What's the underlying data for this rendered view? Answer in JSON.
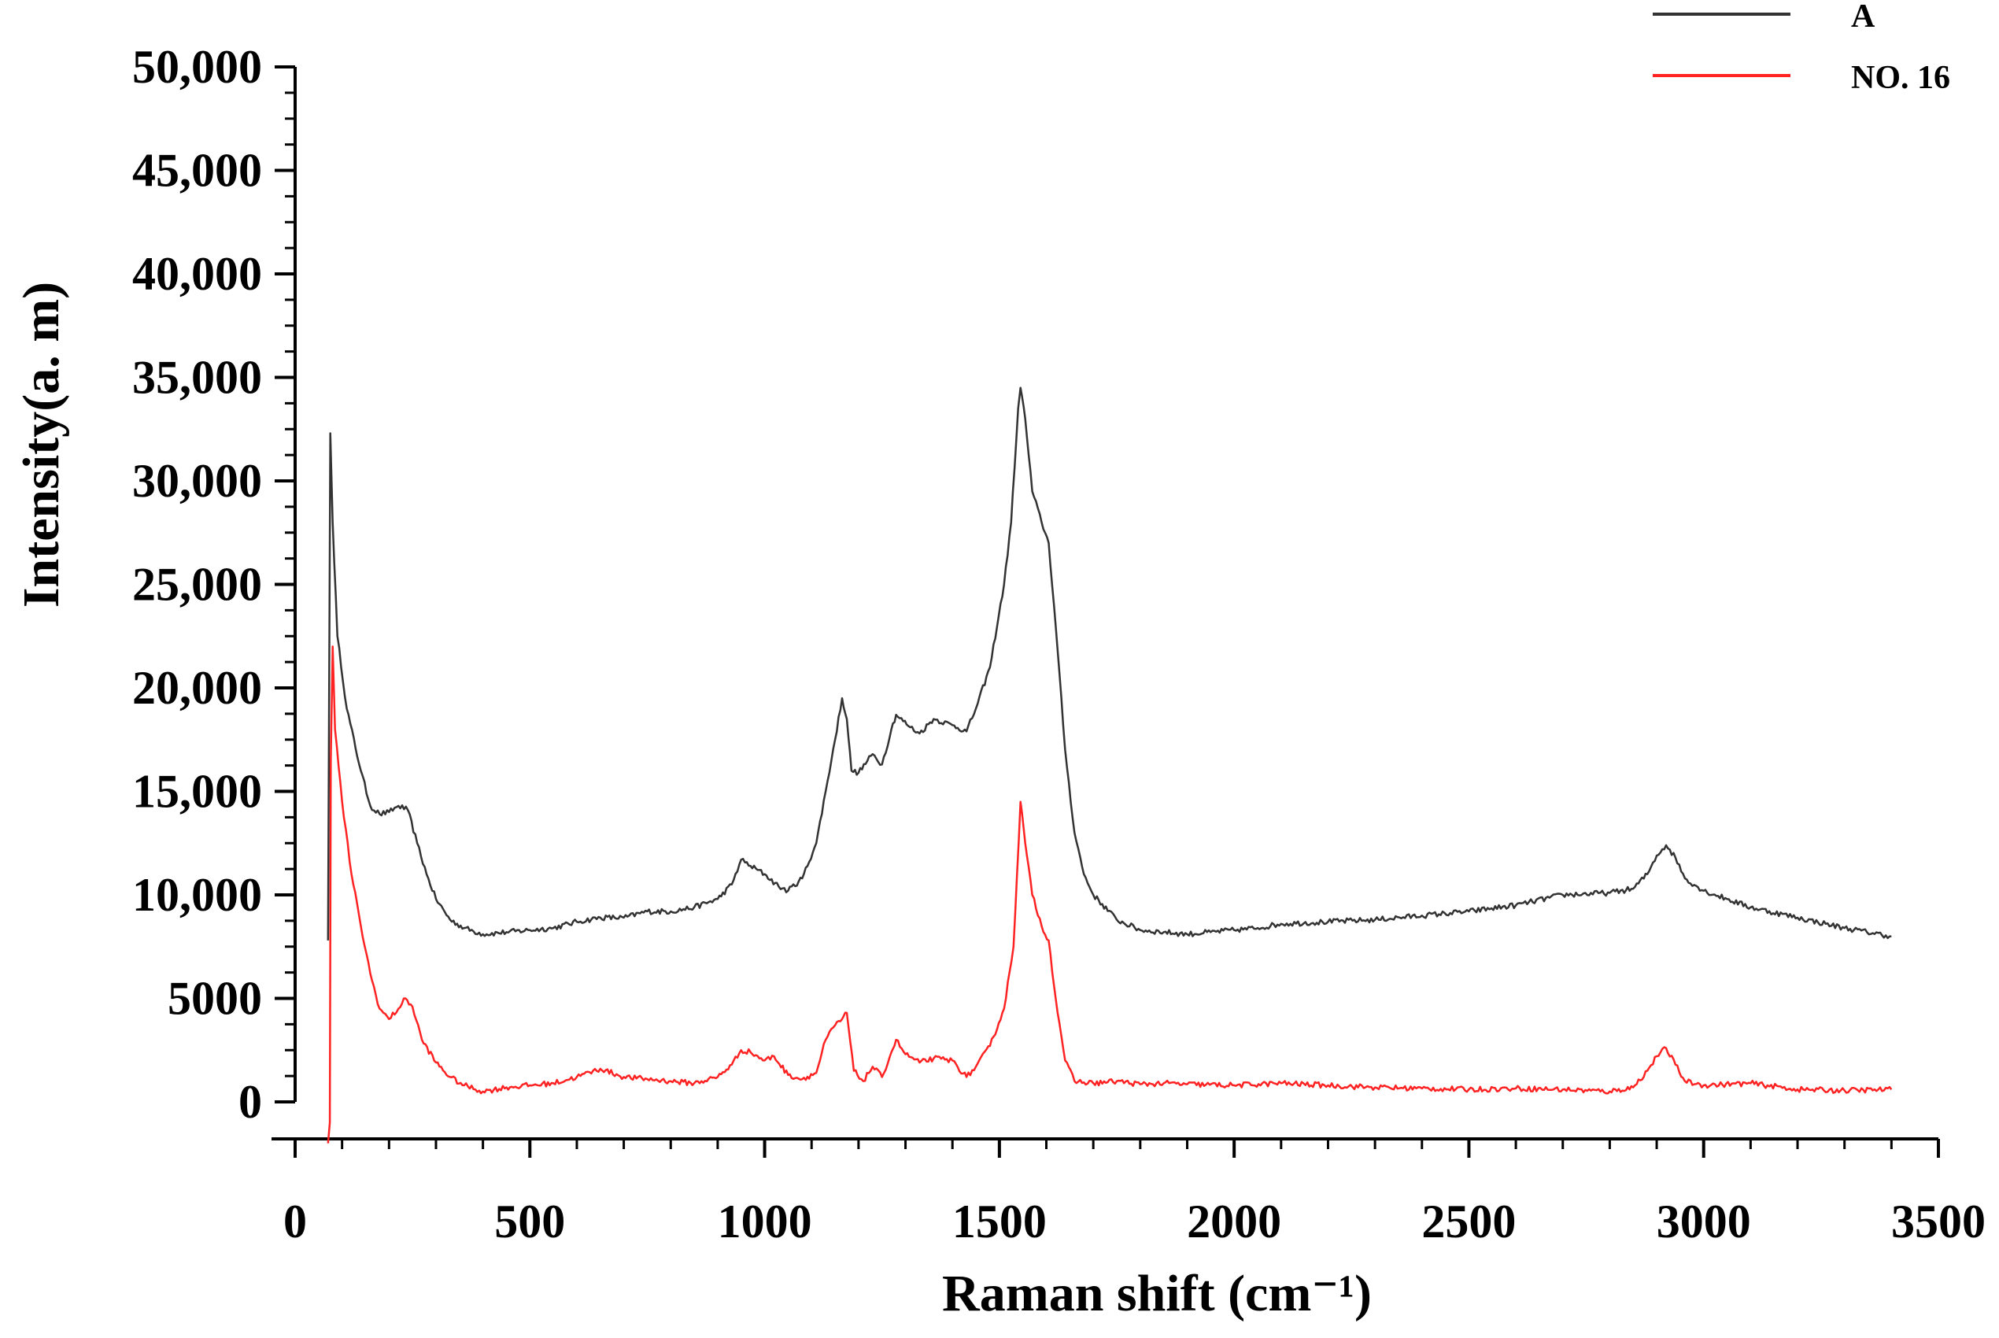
{
  "chart_data": {
    "type": "line",
    "title": "",
    "xlabel": "Raman shift (cm⁻¹)",
    "ylabel": "Intensity(a. m)",
    "xlim": [
      0,
      3500
    ],
    "ylim": [
      0,
      50000
    ],
    "x_ticks": [
      "0",
      "500",
      "1000",
      "1500",
      "2000",
      "2500",
      "3000",
      "3500"
    ],
    "y_ticks": [
      "0",
      "5000",
      "10,000",
      "15,000",
      "20,000",
      "25,000",
      "30,000",
      "35,000",
      "40,000",
      "45,000",
      "50,000"
    ],
    "grid": false,
    "legend_position": "top-right",
    "series": [
      {
        "name": "A",
        "color": "#333333",
        "points": [
          [
            70,
            7800
          ],
          [
            75,
            32300
          ],
          [
            80,
            28000
          ],
          [
            90,
            22500
          ],
          [
            110,
            19000
          ],
          [
            140,
            16000
          ],
          [
            160,
            14300
          ],
          [
            180,
            13900
          ],
          [
            200,
            14000
          ],
          [
            220,
            14300
          ],
          [
            240,
            14100
          ],
          [
            260,
            12500
          ],
          [
            280,
            11000
          ],
          [
            300,
            9800
          ],
          [
            330,
            8800
          ],
          [
            360,
            8400
          ],
          [
            400,
            8100
          ],
          [
            450,
            8200
          ],
          [
            500,
            8300
          ],
          [
            550,
            8400
          ],
          [
            600,
            8700
          ],
          [
            650,
            8900
          ],
          [
            700,
            8900
          ],
          [
            750,
            9200
          ],
          [
            800,
            9200
          ],
          [
            850,
            9400
          ],
          [
            900,
            9800
          ],
          [
            930,
            10500
          ],
          [
            950,
            11700
          ],
          [
            970,
            11400
          ],
          [
            1000,
            11000
          ],
          [
            1030,
            10400
          ],
          [
            1050,
            10200
          ],
          [
            1080,
            10800
          ],
          [
            1110,
            12500
          ],
          [
            1130,
            15000
          ],
          [
            1150,
            17500
          ],
          [
            1165,
            19500
          ],
          [
            1175,
            18500
          ],
          [
            1185,
            16000
          ],
          [
            1200,
            15900
          ],
          [
            1230,
            16800
          ],
          [
            1250,
            16300
          ],
          [
            1270,
            18000
          ],
          [
            1280,
            18700
          ],
          [
            1310,
            18100
          ],
          [
            1330,
            17800
          ],
          [
            1360,
            18500
          ],
          [
            1400,
            18200
          ],
          [
            1430,
            17900
          ],
          [
            1450,
            19000
          ],
          [
            1480,
            21000
          ],
          [
            1510,
            25000
          ],
          [
            1525,
            28000
          ],
          [
            1540,
            33500
          ],
          [
            1545,
            34500
          ],
          [
            1555,
            33000
          ],
          [
            1570,
            29500
          ],
          [
            1590,
            28000
          ],
          [
            1605,
            27000
          ],
          [
            1620,
            23000
          ],
          [
            1640,
            17000
          ],
          [
            1660,
            13000
          ],
          [
            1680,
            11000
          ],
          [
            1700,
            10000
          ],
          [
            1750,
            8800
          ],
          [
            1800,
            8300
          ],
          [
            1850,
            8200
          ],
          [
            1900,
            8100
          ],
          [
            1950,
            8200
          ],
          [
            2000,
            8300
          ],
          [
            2050,
            8400
          ],
          [
            2100,
            8600
          ],
          [
            2200,
            8700
          ],
          [
            2300,
            8800
          ],
          [
            2400,
            9000
          ],
          [
            2500,
            9200
          ],
          [
            2600,
            9500
          ],
          [
            2700,
            10000
          ],
          [
            2800,
            10100
          ],
          [
            2850,
            10300
          ],
          [
            2880,
            11000
          ],
          [
            2900,
            11900
          ],
          [
            2920,
            12400
          ],
          [
            2940,
            11800
          ],
          [
            2960,
            10800
          ],
          [
            3000,
            10200
          ],
          [
            3050,
            9800
          ],
          [
            3100,
            9400
          ],
          [
            3200,
            8900
          ],
          [
            3300,
            8400
          ],
          [
            3400,
            8000
          ]
        ]
      },
      {
        "name": "NO. 16",
        "color": "#ff2222",
        "points": [
          [
            70,
            -2000
          ],
          [
            74,
            -1000
          ],
          [
            76,
            16500
          ],
          [
            80,
            22000
          ],
          [
            85,
            18000
          ],
          [
            100,
            14500
          ],
          [
            120,
            11000
          ],
          [
            140,
            8500
          ],
          [
            160,
            6200
          ],
          [
            180,
            4500
          ],
          [
            200,
            4000
          ],
          [
            220,
            4500
          ],
          [
            235,
            5000
          ],
          [
            250,
            4600
          ],
          [
            270,
            3000
          ],
          [
            300,
            1900
          ],
          [
            330,
            1200
          ],
          [
            360,
            800
          ],
          [
            400,
            500
          ],
          [
            450,
            700
          ],
          [
            500,
            800
          ],
          [
            550,
            900
          ],
          [
            600,
            1200
          ],
          [
            650,
            1600
          ],
          [
            700,
            1200
          ],
          [
            750,
            1100
          ],
          [
            800,
            1000
          ],
          [
            850,
            900
          ],
          [
            900,
            1200
          ],
          [
            930,
            1800
          ],
          [
            950,
            2500
          ],
          [
            970,
            2400
          ],
          [
            1000,
            2000
          ],
          [
            1020,
            2200
          ],
          [
            1050,
            1300
          ],
          [
            1080,
            1100
          ],
          [
            1110,
            1400
          ],
          [
            1130,
            3000
          ],
          [
            1150,
            3700
          ],
          [
            1165,
            4000
          ],
          [
            1175,
            4300
          ],
          [
            1190,
            1500
          ],
          [
            1210,
            1000
          ],
          [
            1230,
            1700
          ],
          [
            1250,
            1200
          ],
          [
            1270,
            2400
          ],
          [
            1280,
            3000
          ],
          [
            1300,
            2300
          ],
          [
            1330,
            1900
          ],
          [
            1360,
            2100
          ],
          [
            1400,
            2000
          ],
          [
            1430,
            1200
          ],
          [
            1450,
            1700
          ],
          [
            1480,
            2700
          ],
          [
            1510,
            4500
          ],
          [
            1530,
            7500
          ],
          [
            1545,
            14500
          ],
          [
            1555,
            12500
          ],
          [
            1570,
            10000
          ],
          [
            1590,
            8500
          ],
          [
            1605,
            7800
          ],
          [
            1620,
            5000
          ],
          [
            1640,
            2000
          ],
          [
            1660,
            1000
          ],
          [
            1700,
            900
          ],
          [
            1750,
            1000
          ],
          [
            1800,
            850
          ],
          [
            1850,
            900
          ],
          [
            1900,
            850
          ],
          [
            2000,
            800
          ],
          [
            2100,
            900
          ],
          [
            2200,
            800
          ],
          [
            2300,
            700
          ],
          [
            2400,
            650
          ],
          [
            2500,
            600
          ],
          [
            2600,
            650
          ],
          [
            2700,
            600
          ],
          [
            2800,
            500
          ],
          [
            2850,
            700
          ],
          [
            2880,
            1500
          ],
          [
            2900,
            2200
          ],
          [
            2920,
            2600
          ],
          [
            2940,
            1800
          ],
          [
            2960,
            1000
          ],
          [
            3000,
            800
          ],
          [
            3100,
            900
          ],
          [
            3200,
            600
          ],
          [
            3300,
            550
          ],
          [
            3400,
            600
          ]
        ]
      }
    ]
  }
}
